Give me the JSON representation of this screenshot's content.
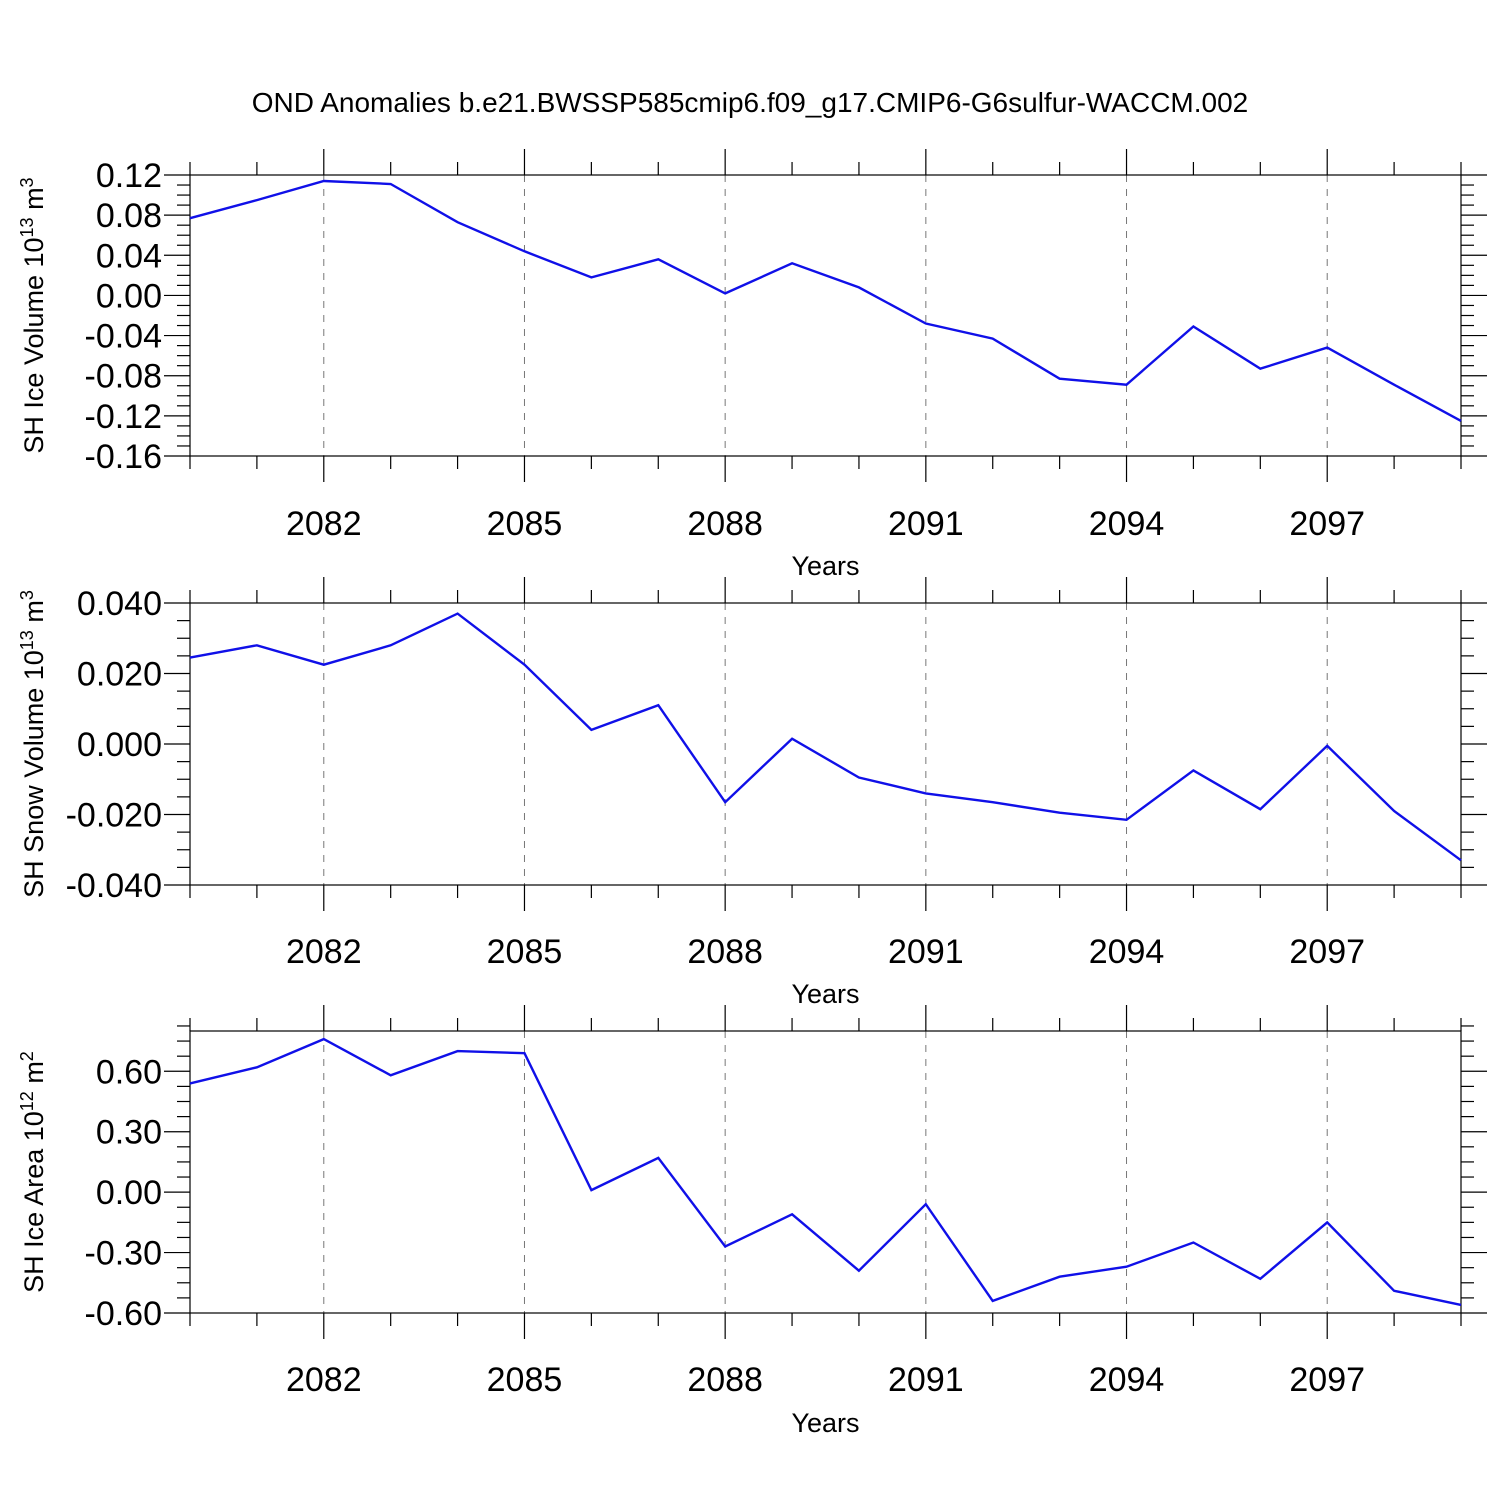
{
  "figure": {
    "title": "OND Anomalies b.e21.BWSSP585cmip6.f09_g17.CMIP6-G6sulfur-WACCM.002",
    "line_color": "#1010e8"
  },
  "chart_data": [
    {
      "type": "line",
      "ylabel_main": "SH Ice Volume 10",
      "ylabel_exp": "13",
      "ylabel_unit": " m",
      "ylabel_unit_exp": "3",
      "xlabel": "Years",
      "xlim": [
        2080,
        2099
      ],
      "ylim": [
        -0.16,
        0.12
      ],
      "yticks": [
        0.12,
        0.08,
        0.04,
        0.0,
        -0.04,
        -0.08,
        -0.12,
        -0.16
      ],
      "ytick_labels": [
        "0.12",
        "0.08",
        "0.04",
        "0.00",
        "-0.04",
        "-0.08",
        "-0.12",
        "-0.16"
      ],
      "xticks": [
        2082,
        2085,
        2088,
        2091,
        2094,
        2097
      ],
      "xtick_labels": [
        "2082",
        "2085",
        "2088",
        "2091",
        "2094",
        "2097"
      ],
      "grid": "vertical-dashed",
      "x": [
        2080,
        2081,
        2082,
        2083,
        2084,
        2085,
        2086,
        2087,
        2088,
        2089,
        2090,
        2091,
        2092,
        2093,
        2094,
        2095,
        2096,
        2097,
        2098,
        2099
      ],
      "values": [
        0.077,
        0.095,
        0.114,
        0.111,
        0.073,
        0.044,
        0.018,
        0.036,
        0.002,
        0.032,
        0.008,
        -0.028,
        -0.043,
        -0.083,
        -0.089,
        -0.031,
        -0.073,
        -0.052,
        -0.089,
        -0.125
      ]
    },
    {
      "type": "line",
      "ylabel_main": "SH Snow Volume 10",
      "ylabel_exp": "13",
      "ylabel_unit": " m",
      "ylabel_unit_exp": "3",
      "xlabel": "Years",
      "xlim": [
        2080,
        2099
      ],
      "ylim": [
        -0.04,
        0.04
      ],
      "yticks": [
        0.04,
        0.02,
        0.0,
        -0.02,
        -0.04
      ],
      "ytick_labels": [
        "0.040",
        "0.020",
        "0.000",
        "-0.020",
        "-0.040"
      ],
      "xticks": [
        2082,
        2085,
        2088,
        2091,
        2094,
        2097
      ],
      "xtick_labels": [
        "2082",
        "2085",
        "2088",
        "2091",
        "2094",
        "2097"
      ],
      "grid": "vertical-dashed",
      "x": [
        2080,
        2081,
        2082,
        2083,
        2084,
        2085,
        2086,
        2087,
        2088,
        2089,
        2090,
        2091,
        2092,
        2093,
        2094,
        2095,
        2096,
        2097,
        2098,
        2099
      ],
      "values": [
        0.0245,
        0.028,
        0.0225,
        0.028,
        0.037,
        0.0225,
        0.004,
        0.011,
        -0.0165,
        0.0015,
        -0.0095,
        -0.014,
        -0.0165,
        -0.0195,
        -0.0215,
        -0.0075,
        -0.0185,
        -0.0005,
        -0.019,
        -0.033
      ]
    },
    {
      "type": "line",
      "ylabel_main": "SH Ice Area 10",
      "ylabel_exp": "12",
      "ylabel_unit": " m",
      "ylabel_unit_exp": "2",
      "xlabel": "Years",
      "xlim": [
        2080,
        2099
      ],
      "ylim": [
        -0.6,
        0.8
      ],
      "yticks": [
        0.6,
        0.3,
        0.0,
        -0.3,
        -0.6
      ],
      "ytick_labels": [
        "0.60",
        "0.30",
        "0.00",
        "-0.30",
        "-0.60"
      ],
      "xticks": [
        2082,
        2085,
        2088,
        2091,
        2094,
        2097
      ],
      "xtick_labels": [
        "2082",
        "2085",
        "2088",
        "2091",
        "2094",
        "2097"
      ],
      "grid": "vertical-dashed",
      "x": [
        2080,
        2081,
        2082,
        2083,
        2084,
        2085,
        2086,
        2087,
        2088,
        2089,
        2090,
        2091,
        2092,
        2093,
        2094,
        2095,
        2096,
        2097,
        2098,
        2099
      ],
      "values": [
        0.54,
        0.62,
        0.76,
        0.58,
        0.7,
        0.69,
        0.01,
        0.17,
        -0.27,
        -0.11,
        -0.39,
        -0.06,
        -0.54,
        -0.42,
        -0.37,
        -0.25,
        -0.43,
        -0.15,
        -0.49,
        -0.56
      ]
    }
  ]
}
